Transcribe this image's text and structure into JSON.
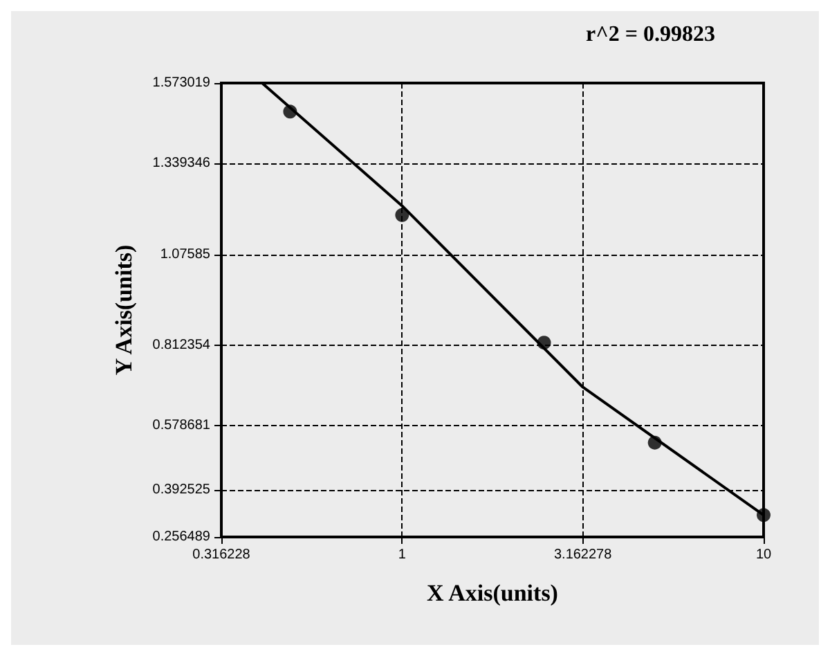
{
  "chart_data": {
    "type": "scatter",
    "title": "r^2 = 0.99823",
    "xlabel": "X Axis(units)",
    "ylabel": "Y Axis(units)",
    "log": "x",
    "xlim": [
      0.316228,
      10
    ],
    "xticks": [
      0.316228,
      1,
      3.162278,
      10
    ],
    "ylim": [
      0.256489,
      1.573019
    ],
    "yticks": [
      0.256489,
      0.392525,
      0.578681,
      0.812354,
      1.07585,
      1.339346,
      1.573019
    ],
    "grid": true,
    "marker": "circle",
    "series": [
      {
        "color": "#000000",
        "x": [
          0.49,
          1,
          2.47,
          5.0,
          10
        ],
        "values": [
          1.49,
          1.19,
          0.82,
          0.53,
          0.32
        ]
      },
      {
        "type": "line",
        "color": "#000000",
        "marker": "none",
        "x": [
          0.41,
          1,
          3.162,
          10
        ],
        "values": [
          1.573,
          1.217,
          0.691,
          0.32
        ]
      }
    ]
  }
}
